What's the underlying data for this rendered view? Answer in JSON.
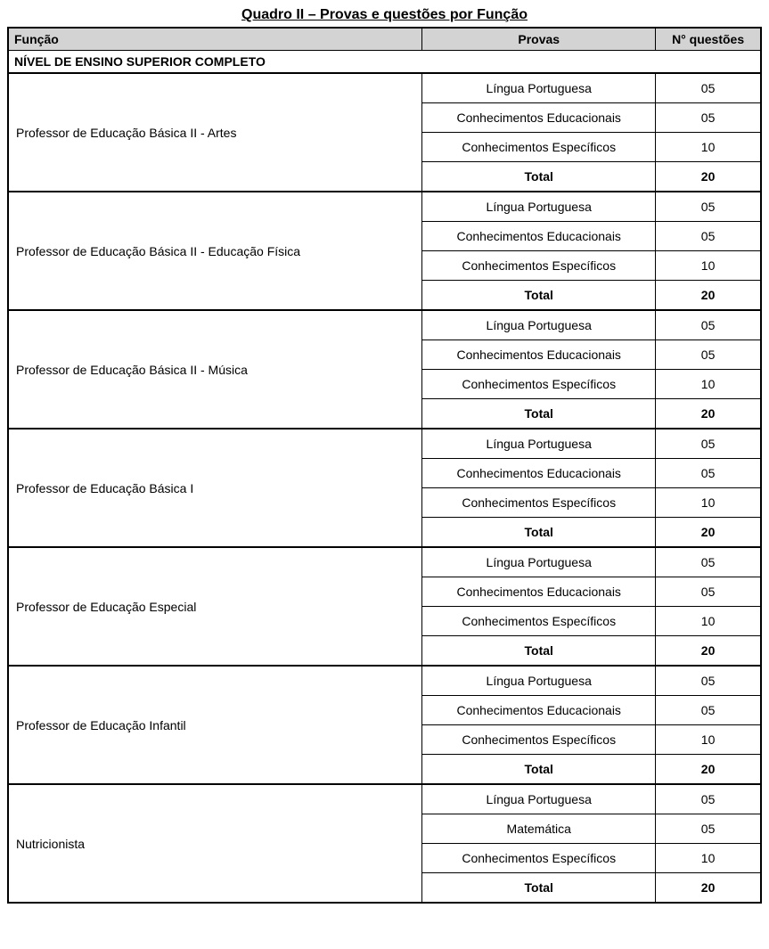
{
  "title": "Quadro II – Provas e questões por Função",
  "columns": {
    "funcao": "Função",
    "provas": "Provas",
    "questoes": "N° questões"
  },
  "section_header": "NÍVEL DE ENSINO SUPERIOR COMPLETO",
  "total_label": "Total",
  "col_widths": {
    "funcao_pct": 55,
    "provas_pct": 31,
    "questoes_pct": 14
  },
  "styling": {
    "header_bg": "#d3d3d3",
    "border_color": "#000000",
    "font_family": "Arial",
    "title_fontsize": 16,
    "cell_fontsize": 14
  },
  "groups": [
    {
      "funcao": "Professor de Educação Básica II - Artes",
      "rows": [
        {
          "prova": "Língua Portuguesa",
          "qtd": "05"
        },
        {
          "prova": "Conhecimentos Educacionais",
          "qtd": "05"
        },
        {
          "prova": "Conhecimentos Específicos",
          "qtd": "10"
        }
      ],
      "total": "20"
    },
    {
      "funcao": "Professor de Educação Básica II - Educação Física",
      "rows": [
        {
          "prova": "Língua Portuguesa",
          "qtd": "05"
        },
        {
          "prova": "Conhecimentos Educacionais",
          "qtd": "05"
        },
        {
          "prova": "Conhecimentos Específicos",
          "qtd": "10"
        }
      ],
      "total": "20"
    },
    {
      "funcao": "Professor de Educação Básica II - Música",
      "rows": [
        {
          "prova": "Língua Portuguesa",
          "qtd": "05"
        },
        {
          "prova": "Conhecimentos Educacionais",
          "qtd": "05"
        },
        {
          "prova": "Conhecimentos Específicos",
          "qtd": "10"
        }
      ],
      "total": "20"
    },
    {
      "funcao": "Professor de Educação Básica I",
      "rows": [
        {
          "prova": "Língua Portuguesa",
          "qtd": "05"
        },
        {
          "prova": "Conhecimentos Educacionais",
          "qtd": "05"
        },
        {
          "prova": "Conhecimentos Específicos",
          "qtd": "10"
        }
      ],
      "total": "20"
    },
    {
      "funcao": "Professor de Educação Especial",
      "rows": [
        {
          "prova": "Língua Portuguesa",
          "qtd": "05"
        },
        {
          "prova": "Conhecimentos Educacionais",
          "qtd": "05"
        },
        {
          "prova": "Conhecimentos Específicos",
          "qtd": "10"
        }
      ],
      "total": "20"
    },
    {
      "funcao": "Professor de Educação Infantil",
      "rows": [
        {
          "prova": "Língua Portuguesa",
          "qtd": "05"
        },
        {
          "prova": "Conhecimentos Educacionais",
          "qtd": "05"
        },
        {
          "prova": "Conhecimentos Específicos",
          "qtd": "10"
        }
      ],
      "total": "20"
    },
    {
      "funcao": "Nutricionista",
      "rows": [
        {
          "prova": "Língua Portuguesa",
          "qtd": "05"
        },
        {
          "prova": "Matemática",
          "qtd": "05"
        },
        {
          "prova": "Conhecimentos Específicos",
          "qtd": "10"
        }
      ],
      "total": "20"
    }
  ]
}
